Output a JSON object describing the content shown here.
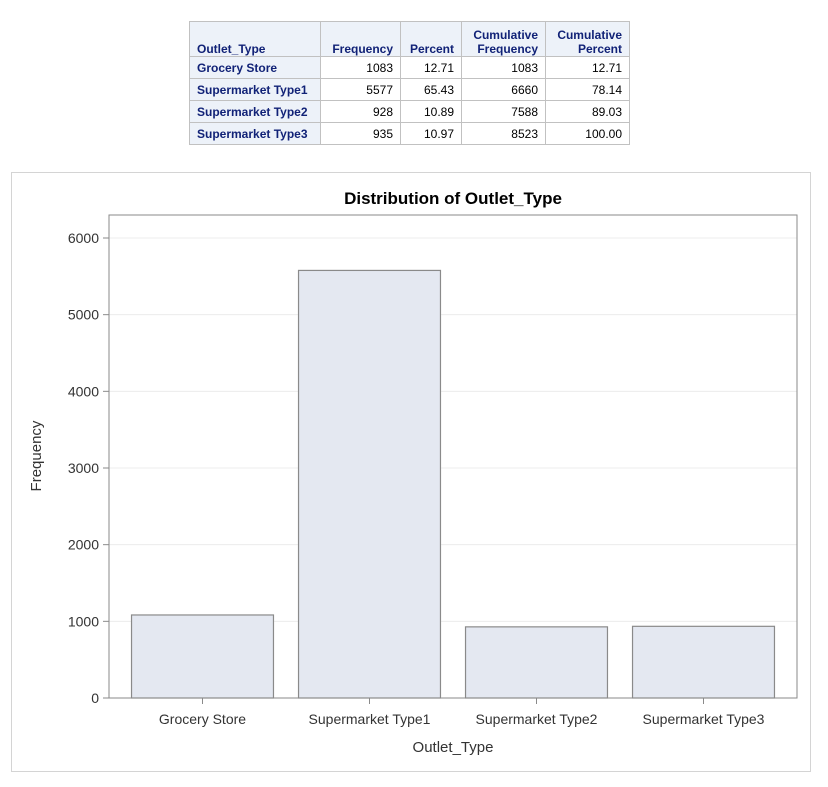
{
  "table": {
    "headers": {
      "category": "Outlet_Type",
      "frequency": "Frequency",
      "percent": "Percent",
      "cum_frequency_line1": "Cumulative",
      "cum_frequency_line2": "Frequency",
      "cum_percent_line1": "Cumulative",
      "cum_percent_line2": "Percent"
    },
    "rows": [
      {
        "label": "Grocery Store",
        "frequency": "1083",
        "percent": "12.71",
        "cum_frequency": "1083",
        "cum_percent": "12.71"
      },
      {
        "label": "Supermarket Type1",
        "frequency": "5577",
        "percent": "65.43",
        "cum_frequency": "6660",
        "cum_percent": "78.14"
      },
      {
        "label": "Supermarket Type2",
        "frequency": "928",
        "percent": "10.89",
        "cum_frequency": "7588",
        "cum_percent": "89.03"
      },
      {
        "label": "Supermarket Type3",
        "frequency": "935",
        "percent": "10.97",
        "cum_frequency": "8523",
        "cum_percent": "100.00"
      }
    ]
  },
  "chart_data": {
    "type": "bar",
    "title": "Distribution of Outlet_Type",
    "xlabel": "Outlet_Type",
    "ylabel": "Frequency",
    "categories": [
      "Grocery Store",
      "Supermarket Type1",
      "Supermarket Type2",
      "Supermarket Type3"
    ],
    "values": [
      1083,
      5577,
      928,
      935
    ],
    "yticks": [
      "0",
      "1000",
      "2000",
      "3000",
      "4000",
      "5000",
      "6000"
    ],
    "ylim": [
      0,
      6300
    ],
    "grid": true,
    "colors": {
      "bar_fill": "#e4e8f1",
      "bar_stroke": "#8a8a8a",
      "grid": "#ececec",
      "axis": "#8a8a8a"
    }
  }
}
